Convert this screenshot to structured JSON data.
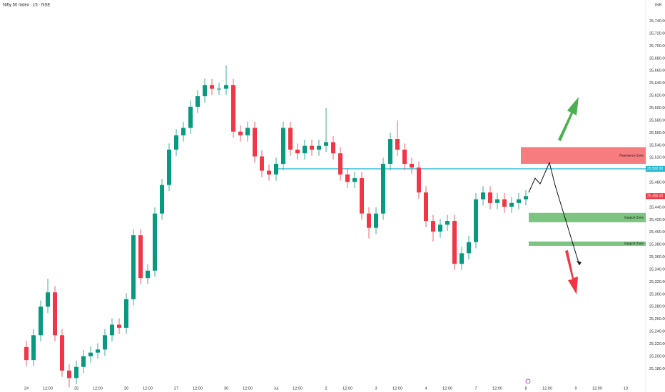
{
  "chart_data": {
    "type": "candlestick",
    "title": "Nifty 50 Index · 15 · NSE",
    "currency": "INR",
    "up_color": "#089981",
    "down_color": "#f23645",
    "categories": [
      "24",
      null,
      null,
      "12:00",
      null,
      null,
      null,
      "25",
      null,
      null,
      "12:00",
      null,
      null,
      null,
      "26",
      null,
      null,
      "12:00",
      null,
      null,
      null,
      "27",
      null,
      null,
      "12:00",
      null,
      null,
      null,
      "30",
      null,
      null,
      "12:00",
      null,
      null,
      null,
      "Jul",
      null,
      null,
      "12:00",
      null,
      null,
      null,
      "2",
      null,
      null,
      "12:00",
      null,
      null,
      null,
      "3",
      null,
      null,
      "12:00",
      null,
      null,
      null,
      "4",
      null,
      null,
      "12:00",
      null,
      null,
      null,
      "7",
      null,
      null,
      "12:00",
      null,
      null,
      null,
      "8",
      null,
      null,
      "12:00",
      null,
      null,
      null,
      "9",
      null,
      null,
      "12:00",
      null,
      null,
      null,
      "10",
      null,
      null
    ],
    "open": [
      25215,
      25194,
      25234,
      25280,
      25303,
      25234,
      25177,
      25165,
      25183,
      25200,
      25206,
      25211,
      25234,
      25251,
      25246,
      25292,
      25395,
      25326,
      25338,
      25430,
      25476,
      25533,
      25556,
      25568,
      25602,
      25619,
      25637,
      25631,
      25631,
      25637,
      25562,
      25556,
      25568,
      25522,
      25499,
      25493,
      25510,
      25568,
      25533,
      25527,
      25539,
      25533,
      25539,
      25545,
      25527,
      25493,
      25481,
      25487,
      25430,
      25407,
      25430,
      25510,
      25550,
      25533,
      25510,
      25504,
      25464,
      25418,
      25401,
      25412,
      25418,
      25349,
      25366,
      25384,
      25453,
      25464,
      25447,
      25453,
      25441,
      25447,
      25453,
      null,
      null,
      null,
      null,
      null,
      null,
      null,
      null,
      null,
      null,
      null,
      null,
      null,
      null,
      null,
      null
    ],
    "high": [
      25225,
      25244,
      25290,
      25325,
      25313,
      25244,
      25187,
      25193,
      25210,
      25216,
      25221,
      25244,
      25261,
      25261,
      25302,
      25405,
      25405,
      25348,
      25440,
      25486,
      25543,
      25566,
      25578,
      25612,
      25629,
      25647,
      25647,
      25641,
      25669,
      25647,
      25572,
      25578,
      25578,
      25532,
      25509,
      25520,
      25578,
      25578,
      25543,
      25549,
      25549,
      25549,
      25600,
      25555,
      25537,
      25503,
      25497,
      25497,
      25440,
      25440,
      25520,
      25560,
      25580,
      25543,
      25520,
      25514,
      25474,
      25428,
      25422,
      25428,
      25428,
      25376,
      25394,
      25463,
      25474,
      25474,
      25463,
      25463,
      25457,
      25463,
      25468,
      null,
      null,
      null,
      null,
      null,
      null,
      null,
      null,
      null,
      null,
      null,
      null,
      null,
      null,
      null,
      null
    ],
    "low": [
      25184,
      25184,
      25224,
      25270,
      25224,
      25167,
      25150,
      25155,
      25173,
      25190,
      25196,
      25201,
      25224,
      25236,
      25236,
      25282,
      25316,
      25316,
      25328,
      25420,
      25466,
      25523,
      25546,
      25558,
      25592,
      25609,
      25621,
      25621,
      25621,
      25552,
      25546,
      25546,
      25512,
      25489,
      25483,
      25483,
      25500,
      25523,
      25517,
      25517,
      25523,
      25523,
      25529,
      25517,
      25483,
      25471,
      25471,
      25420,
      25390,
      25397,
      25420,
      25500,
      25523,
      25500,
      25494,
      25454,
      25408,
      25385,
      25391,
      25402,
      25339,
      25339,
      25356,
      25374,
      25443,
      25437,
      25437,
      25431,
      25431,
      25437,
      25443,
      null,
      null,
      null,
      null,
      null,
      null,
      null,
      null,
      null,
      null,
      null,
      null,
      null,
      null,
      null,
      null
    ],
    "close": [
      25194,
      25234,
      25280,
      25303,
      25234,
      25177,
      25165,
      25183,
      25200,
      25206,
      25211,
      25234,
      25251,
      25246,
      25292,
      25395,
      25326,
      25338,
      25430,
      25476,
      25533,
      25556,
      25568,
      25602,
      25619,
      25637,
      25631,
      25631,
      25637,
      25562,
      25556,
      25568,
      25522,
      25499,
      25493,
      25510,
      25568,
      25533,
      25527,
      25539,
      25533,
      25539,
      25545,
      25527,
      25493,
      25481,
      25487,
      25430,
      25407,
      25430,
      25510,
      25550,
      25533,
      25510,
      25504,
      25464,
      25418,
      25401,
      25412,
      25418,
      25349,
      25366,
      25384,
      25453,
      25464,
      25447,
      25453,
      25441,
      25447,
      25453,
      25458,
      null,
      null,
      null,
      null,
      null,
      null,
      null,
      null,
      null,
      null,
      null,
      null,
      null,
      null,
      null,
      null
    ],
    "ylim": [
      25154,
      25774
    ],
    "yticks": [
      {
        "value": 25180,
        "label": "25,180.00"
      },
      {
        "value": 25200,
        "label": "25,200.00"
      },
      {
        "value": 25220,
        "label": "25,220.00"
      },
      {
        "value": 25240,
        "label": "25,240.00"
      },
      {
        "value": 25260,
        "label": "25,260.00"
      },
      {
        "value": 25280,
        "label": "25,280.00"
      },
      {
        "value": 25300,
        "label": "25,300.00"
      },
      {
        "value": 25320,
        "label": "25,320.00"
      },
      {
        "value": 25340,
        "label": "25,340.00"
      },
      {
        "value": 25360,
        "label": "25,360.00"
      },
      {
        "value": 25380,
        "label": "25,380.00"
      },
      {
        "value": 25400,
        "label": "25,400.00"
      },
      {
        "value": 25420,
        "label": "25,420.00"
      },
      {
        "value": 25440,
        "label": "25,440.00"
      },
      {
        "value": 25460,
        "label": "25,460.00"
      },
      {
        "value": 25480,
        "label": "25,480.00"
      },
      {
        "value": 25500,
        "label": "25,500.00"
      },
      {
        "value": 25520,
        "label": "25,520.00"
      },
      {
        "value": 25540,
        "label": "25,540.00"
      },
      {
        "value": 25560,
        "label": "25,560.00"
      },
      {
        "value": 25580,
        "label": "25,580.00"
      },
      {
        "value": 25600,
        "label": "25,600.00"
      },
      {
        "value": 25620,
        "label": "25,620.00"
      },
      {
        "value": 25640,
        "label": "25,640.00"
      },
      {
        "value": 25660,
        "label": "25,660.00"
      },
      {
        "value": 25680,
        "label": "25,680.00"
      },
      {
        "value": 25700,
        "label": "25,700.00"
      },
      {
        "value": 25720,
        "label": "25,720.00"
      },
      {
        "value": 25740,
        "label": "25,740.00"
      }
    ],
    "zones": [
      {
        "label": "Resistance Zone",
        "low": 25510,
        "high": 25537,
        "color": "#f77c80"
      },
      {
        "label": "Support Zone",
        "low": 25416,
        "high": 25431,
        "color": "#7cc47f"
      },
      {
        "label": "Support Zone",
        "low": 25378,
        "high": 25385,
        "color": "#7cc47f"
      }
    ],
    "level": {
      "value": 25502,
      "label": "25,502.00",
      "color": "#22b8cf"
    },
    "last_price": {
      "value": 25458,
      "label": "25,458.00"
    }
  }
}
